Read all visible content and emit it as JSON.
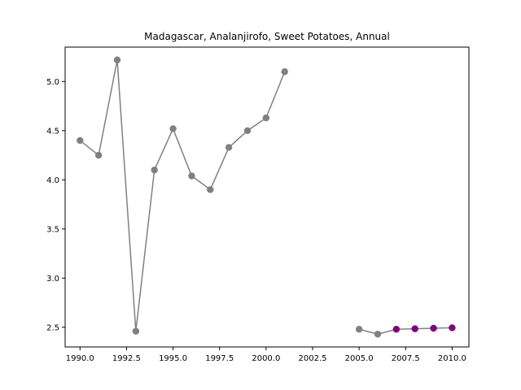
{
  "chart_data": {
    "type": "line",
    "title": "Madagascar, Analanjirofo, Sweet Potatoes, Annual",
    "xlabel": "",
    "ylabel": "",
    "xlim": [
      1989.2,
      2010.9
    ],
    "ylim": [
      2.3,
      5.35
    ],
    "x_ticks": [
      1990,
      1992.5,
      1995,
      1997.5,
      2000,
      2002.5,
      2005,
      2007.5,
      2010
    ],
    "x_tick_labels": [
      "1990.0",
      "1992.5",
      "1995.0",
      "1997.5",
      "2000.0",
      "2002.5",
      "2005.0",
      "2007.5",
      "2010.0"
    ],
    "y_ticks": [
      2.5,
      3.0,
      3.5,
      4.0,
      4.5,
      5.0
    ],
    "y_tick_labels": [
      "2.5",
      "3.0",
      "3.5",
      "4.0",
      "4.5",
      "5.0"
    ],
    "grid": false,
    "line_color": "#808080",
    "segments": [
      [
        {
          "x": 1990,
          "y": 4.4
        },
        {
          "x": 1991,
          "y": 4.25
        },
        {
          "x": 1992,
          "y": 5.22
        },
        {
          "x": 1993,
          "y": 2.46
        },
        {
          "x": 1994,
          "y": 4.1
        },
        {
          "x": 1995,
          "y": 4.52
        },
        {
          "x": 1996,
          "y": 4.04
        },
        {
          "x": 1997,
          "y": 3.9
        },
        {
          "x": 1998,
          "y": 4.33
        },
        {
          "x": 1999,
          "y": 4.5
        },
        {
          "x": 2000,
          "y": 4.63
        },
        {
          "x": 2001,
          "y": 5.1
        }
      ],
      [
        {
          "x": 2005,
          "y": 2.48
        },
        {
          "x": 2006,
          "y": 2.43
        },
        {
          "x": 2007,
          "y": 2.48,
          "color": "#800080"
        },
        {
          "x": 2008,
          "y": 2.485,
          "color": "#800080"
        },
        {
          "x": 2009,
          "y": 2.49,
          "color": "#800080"
        },
        {
          "x": 2010,
          "y": 2.495,
          "color": "#800080"
        }
      ]
    ],
    "point_color": "#808080"
  }
}
